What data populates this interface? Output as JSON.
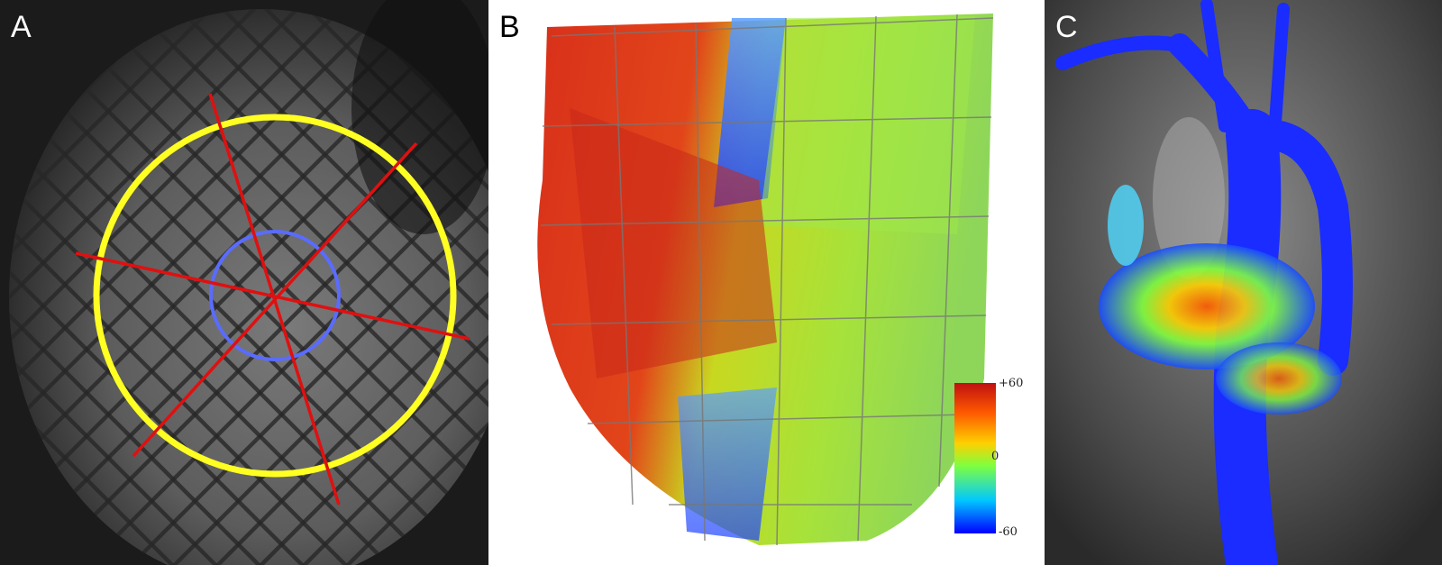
{
  "panels": {
    "a": {
      "letter": "A"
    },
    "b": {
      "letter": "B"
    },
    "c": {
      "letter": "C"
    }
  },
  "colorbar": {
    "max_label": "+60",
    "mid_label": "0",
    "min_label": "-60",
    "max_value": 60,
    "min_value": -60,
    "colors": [
      "#0000ff",
      "#00c8ff",
      "#7fff3f",
      "#ffd000",
      "#ff5a00",
      "#c01010"
    ]
  },
  "colors": {
    "outer_circle": "#ffff22",
    "inner_circle": "#5a6cff",
    "segment_lines": "#e01010"
  }
}
